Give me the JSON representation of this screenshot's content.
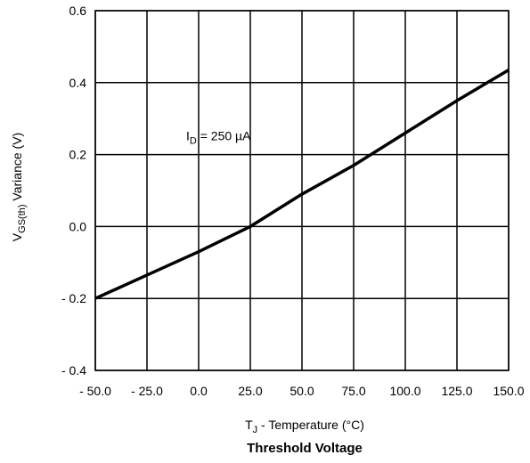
{
  "chart_data": {
    "type": "line",
    "title": "Threshold Voltage",
    "xlabel": {
      "main": "T",
      "sub": "J",
      "rest": " - Temperature (°C)"
    },
    "ylabel": {
      "main": "V",
      "sub": "GS(th)",
      "rest": "  Variance (V)"
    },
    "xlim": [
      -50,
      150
    ],
    "ylim": [
      -0.4,
      0.6
    ],
    "grid": true,
    "x_ticks": [
      -50,
      -25,
      0,
      25,
      50,
      75,
      100,
      125,
      150
    ],
    "x_tick_labels": [
      "- 50.0",
      "- 25.0",
      "0.0",
      "25.0",
      "50.0",
      "75.0",
      "100.0",
      "125.0",
      "150.0"
    ],
    "y_ticks": [
      -0.4,
      -0.2,
      0.0,
      0.2,
      0.4,
      0.6
    ],
    "y_tick_labels": [
      "- 0.4",
      "- 0.2",
      "0.0",
      "0.2",
      "0.4",
      "0.6"
    ],
    "annotation": {
      "main": "I",
      "sub": "D",
      "rest": " = 250 µA",
      "x": 0,
      "y": 0.24
    },
    "series": [
      {
        "color": "#000000",
        "x": [
          -50,
          -25,
          0,
          25,
          50,
          75,
          100,
          125,
          150
        ],
        "y": [
          -0.2,
          -0.135,
          -0.07,
          0.0,
          0.09,
          0.17,
          0.26,
          0.35,
          0.435
        ]
      }
    ]
  }
}
